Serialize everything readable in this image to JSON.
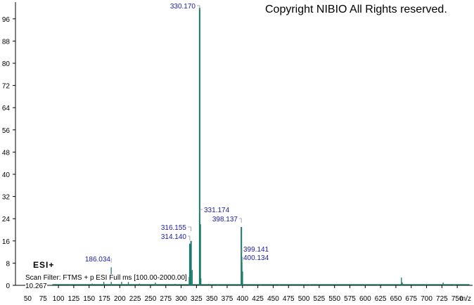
{
  "copyright": "Copyright NIBIO All Rights reserved.",
  "ion_mode": "ESI+",
  "scan_filter": "Scan Filter: FTMS + p ESI Full ms [100.00-2000.00]",
  "retention_time": "10.267",
  "colors": {
    "peak": "#1a7a6a",
    "label": "#1a1aaa",
    "axis": "#000000"
  },
  "chart_data": {
    "type": "bar",
    "xlabel": "m/z",
    "ylabel": "",
    "xlim": [
      30,
      775
    ],
    "ylim": [
      0,
      100
    ],
    "x_ticks": [
      50,
      75,
      100,
      125,
      150,
      175,
      200,
      225,
      250,
      275,
      300,
      325,
      350,
      375,
      400,
      425,
      450,
      475,
      500,
      525,
      550,
      575,
      600,
      625,
      650,
      675,
      700,
      725,
      750
    ],
    "y_ticks": [
      0,
      8,
      16,
      24,
      32,
      40,
      48,
      56,
      64,
      72,
      80,
      88,
      96
    ],
    "peaks": [
      {
        "mz": 186.034,
        "intensity": 6.5
      },
      {
        "mz": 314.14,
        "intensity": 15.0
      },
      {
        "mz": 316.155,
        "intensity": 16.0
      },
      {
        "mz": 330.17,
        "intensity": 100
      },
      {
        "mz": 331.174,
        "intensity": 22.0
      },
      {
        "mz": 398.137,
        "intensity": 21.0
      },
      {
        "mz": 399.141,
        "intensity": 8.5
      },
      {
        "mz": 400.134,
        "intensity": 5.0
      },
      {
        "mz": 318.1,
        "intensity": 5.5
      },
      {
        "mz": 332.2,
        "intensity": 2.5
      },
      {
        "mz": 313.1,
        "intensity": 3.0
      },
      {
        "mz": 174.0,
        "intensity": 1.5
      },
      {
        "mz": 203.0,
        "intensity": 2.0
      },
      {
        "mz": 214.0,
        "intensity": 1.2
      },
      {
        "mz": 258.0,
        "intensity": 1.0
      },
      {
        "mz": 659.0,
        "intensity": 2.8
      },
      {
        "mz": 660.5,
        "intensity": 1.0
      },
      {
        "mz": 727.0,
        "intensity": 1.0
      },
      {
        "mz": 120.0,
        "intensity": 0.4
      },
      {
        "mz": 155.0,
        "intensity": 0.6
      },
      {
        "mz": 232.0,
        "intensity": 0.6
      },
      {
        "mz": 290.0,
        "intensity": 0.5
      },
      {
        "mz": 345.0,
        "intensity": 0.5
      },
      {
        "mz": 360.0,
        "intensity": 0.4
      },
      {
        "mz": 430.0,
        "intensity": 0.4
      },
      {
        "mz": 460.0,
        "intensity": 0.3
      },
      {
        "mz": 510.0,
        "intensity": 0.3
      },
      {
        "mz": 600.0,
        "intensity": 0.3
      },
      {
        "mz": 620.0,
        "intensity": 0.4
      },
      {
        "mz": 700.0,
        "intensity": 0.4
      },
      {
        "mz": 745.0,
        "intensity": 0.3
      }
    ],
    "annotations": [
      {
        "text": "330.170",
        "mz": 330.17
      },
      {
        "text": "331.174",
        "mz": 331.174
      },
      {
        "text": "398.137",
        "mz": 398.137
      },
      {
        "text": "316.155",
        "mz": 316.155
      },
      {
        "text": "314.140",
        "mz": 314.14
      },
      {
        "text": "186.034",
        "mz": 186.034
      },
      {
        "text": "399.141",
        "mz": 399.141
      },
      {
        "text": "400.134",
        "mz": 400.134
      }
    ]
  }
}
